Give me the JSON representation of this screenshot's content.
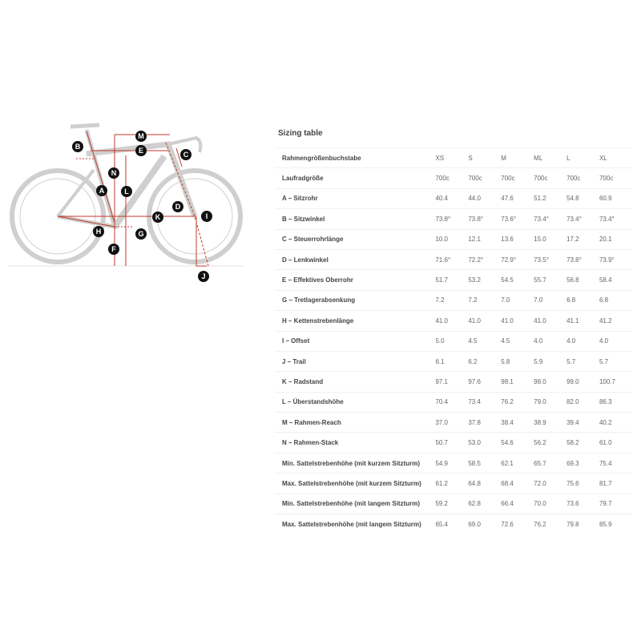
{
  "title": "Sizing table",
  "sizes": [
    "XS",
    "S",
    "M",
    "ML",
    "L",
    "XL"
  ],
  "header_label": "Rahmengrößenbuchstabe",
  "rows": [
    {
      "label": "Laufradgröße",
      "values": [
        "700c",
        "700c",
        "700c",
        "700c",
        "700c",
        "700c"
      ]
    },
    {
      "label": "A – Sitzrohr",
      "values": [
        "40.4",
        "44.0",
        "47.6",
        "51.2",
        "54.8",
        "60.9"
      ]
    },
    {
      "label": "B – Sitzwinkel",
      "values": [
        "73.8°",
        "73.8°",
        "73.6°",
        "73.4°",
        "73.4°",
        "73.4°"
      ]
    },
    {
      "label": "C – Steuerrohrlänge",
      "values": [
        "10.0",
        "12.1",
        "13.6",
        "15.0",
        "17.2",
        "20.1"
      ]
    },
    {
      "label": "D – Lenkwinkel",
      "values": [
        "71.6°",
        "72.2°",
        "72.9°",
        "73.5°",
        "73.8°",
        "73.9°"
      ]
    },
    {
      "label": "E – Effektives Oberrohr",
      "values": [
        "51.7",
        "53.2",
        "54.5",
        "55.7",
        "56.8",
        "58.4"
      ]
    },
    {
      "label": "G – Tretlagerabsenkung",
      "values": [
        "7.2",
        "7.2",
        "7.0",
        "7.0",
        "6.8",
        "6.8"
      ]
    },
    {
      "label": "H – Kettenstrebenlänge",
      "values": [
        "41.0",
        "41.0",
        "41.0",
        "41.0",
        "41.1",
        "41.2"
      ]
    },
    {
      "label": "I – Offset",
      "values": [
        "5.0",
        "4.5",
        "4.5",
        "4.0",
        "4.0",
        "4.0"
      ]
    },
    {
      "label": "J – Trail",
      "values": [
        "6.1",
        "6.2",
        "5.8",
        "5.9",
        "5.7",
        "5.7"
      ]
    },
    {
      "label": "K – Radstand",
      "values": [
        "97.1",
        "97.6",
        "98.1",
        "98.0",
        "99.0",
        "100.7"
      ]
    },
    {
      "label": "L – Überstandshöhe",
      "values": [
        "70.4",
        "73.4",
        "76.2",
        "79.0",
        "82.0",
        "86.3"
      ]
    },
    {
      "label": "M – Rahmen-Reach",
      "values": [
        "37.0",
        "37.8",
        "38.4",
        "38.9",
        "39.4",
        "40.2"
      ]
    },
    {
      "label": "N – Rahmen-Stack",
      "values": [
        "50.7",
        "53.0",
        "54.6",
        "56.2",
        "58.2",
        "61.0"
      ]
    },
    {
      "label": "Min. Sattelstrebenhöhe (mit kurzem Sitzturm)",
      "values": [
        "54.9",
        "58.5",
        "62.1",
        "65.7",
        "69.3",
        "75.4"
      ]
    },
    {
      "label": "Max. Sattelstrebenhöhe (mit kurzem Sitzturm)",
      "values": [
        "61.2",
        "64.8",
        "68.4",
        "72.0",
        "75.6",
        "81.7"
      ]
    },
    {
      "label": "Min. Sattelstrebenhöhe (mit langem Sitzturm)",
      "values": [
        "59.2",
        "62.8",
        "66.4",
        "70.0",
        "73.6",
        "79.7"
      ]
    },
    {
      "label": "Max. Sattelstrebenhöhe (mit langem Sitzturm)",
      "values": [
        "65.4",
        "69.0",
        "72.6",
        "76.2",
        "79.8",
        "85.9"
      ]
    }
  ],
  "diagram": {
    "labels": [
      "A",
      "B",
      "C",
      "D",
      "E",
      "F",
      "G",
      "H",
      "I",
      "J",
      "K",
      "L",
      "M",
      "N"
    ],
    "colors": {
      "measure": "#c0392b",
      "bike": "#c8c8c8",
      "marker": "#111111"
    }
  }
}
